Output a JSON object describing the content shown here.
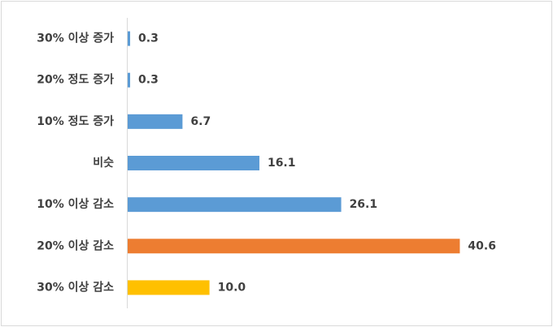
{
  "chart_data": {
    "type": "bar",
    "orientation": "horizontal",
    "categories": [
      "30% 이상 증가",
      "20% 정도 증가",
      "10% 정도 증가",
      "비슷",
      "10% 이상 감소",
      "20% 이상 감소",
      "30% 이상 감소"
    ],
    "values": [
      0.3,
      0.3,
      6.7,
      16.1,
      26.1,
      40.6,
      10.0
    ],
    "value_labels": [
      "0.3",
      "0.3",
      "6.7",
      "16.1",
      "26.1",
      "40.6",
      "10.0"
    ],
    "colors": [
      "#5b9bd5",
      "#5b9bd5",
      "#5b9bd5",
      "#5b9bd5",
      "#5b9bd5",
      "#ed7d31",
      "#ffc000"
    ],
    "xlim": [
      0,
      50
    ]
  }
}
